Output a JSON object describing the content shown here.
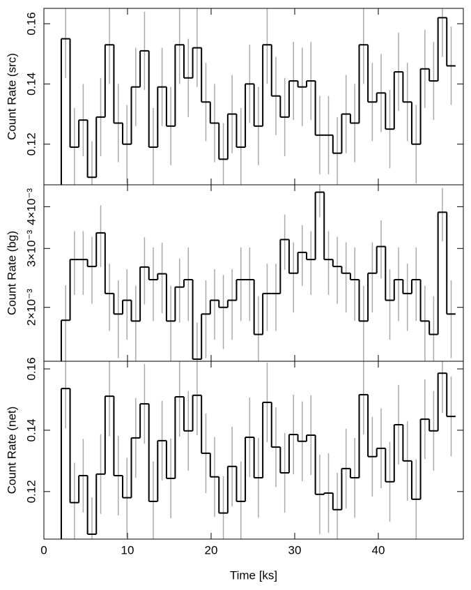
{
  "chart_data": [
    {
      "type": "histogram",
      "ylabel": "Count Rate (src)",
      "bins": [
        2.08,
        3.13,
        4.18,
        5.22,
        6.27,
        7.32,
        8.37,
        9.42,
        10.46,
        11.51,
        12.56,
        13.61,
        14.66,
        15.7,
        16.75,
        17.8,
        18.85,
        19.9,
        20.94,
        21.99,
        23.04,
        24.09,
        25.14,
        26.18,
        27.23,
        28.28,
        29.33,
        30.38,
        31.42,
        32.47,
        33.52,
        34.57,
        35.62,
        36.66,
        37.71,
        38.76,
        39.81,
        40.86,
        41.9,
        42.95,
        44.0,
        45.05,
        46.1,
        47.14,
        48.19,
        49.24
      ],
      "values": [
        0.155,
        0.119,
        0.128,
        0.109,
        0.129,
        0.153,
        0.127,
        0.12,
        0.139,
        0.151,
        0.119,
        0.139,
        0.126,
        0.153,
        0.142,
        0.152,
        0.134,
        0.127,
        0.115,
        0.13,
        0.119,
        0.14,
        0.126,
        0.153,
        0.136,
        0.129,
        0.141,
        0.139,
        0.141,
        0.123,
        0.123,
        0.117,
        0.13,
        0.127,
        0.153,
        0.134,
        0.137,
        0.125,
        0.144,
        0.134,
        0.12,
        0.145,
        0.141,
        0.162,
        0.146
      ],
      "errors": [
        0.013,
        0.013,
        0.012,
        0.012,
        0.013,
        0.013,
        0.013,
        0.013,
        0.013,
        0.013,
        0.013,
        0.013,
        0.013,
        0.013,
        0.013,
        0.013,
        0.013,
        0.013,
        0.012,
        0.013,
        0.013,
        0.013,
        0.013,
        0.013,
        0.013,
        0.013,
        0.013,
        0.013,
        0.013,
        0.013,
        0.013,
        0.012,
        0.013,
        0.013,
        0.013,
        0.013,
        0.013,
        0.013,
        0.013,
        0.013,
        0.013,
        0.013,
        0.013,
        0.013,
        0.013
      ],
      "color": "#000000",
      "error_color": "#aaaaaa",
      "xlim": [
        0,
        50.17
      ],
      "xticks": [
        0,
        10,
        20,
        30,
        40
      ],
      "ylim": [
        0.1065,
        0.1651
      ],
      "yticks": [
        0.12,
        0.14,
        0.16
      ]
    },
    {
      "type": "histogram",
      "ylabel": "Count Rate (bg)",
      "log_y": true,
      "bins": [
        2.08,
        3.13,
        4.18,
        5.22,
        6.27,
        7.32,
        8.37,
        9.42,
        10.46,
        11.51,
        12.56,
        13.61,
        14.66,
        15.7,
        16.75,
        17.8,
        18.85,
        19.9,
        20.94,
        21.99,
        23.04,
        24.09,
        25.14,
        26.18,
        27.23,
        28.28,
        29.33,
        30.38,
        31.42,
        32.47,
        33.52,
        34.57,
        35.62,
        36.66,
        37.71,
        38.76,
        39.81,
        40.86,
        41.9,
        42.95,
        44.0,
        45.05,
        46.1,
        47.14,
        48.19,
        49.24
      ],
      "values": [
        0.00183,
        0.00278,
        0.00278,
        0.00265,
        0.00334,
        0.0022,
        0.00191,
        0.0021,
        0.00182,
        0.00264,
        0.00242,
        0.00252,
        0.00182,
        0.0023,
        0.00242,
        0.0014,
        0.00191,
        0.0021,
        0.002,
        0.0021,
        0.00242,
        0.00242,
        0.00166,
        0.0022,
        0.0022,
        0.00319,
        0.00253,
        0.00292,
        0.00278,
        0.00442,
        0.00278,
        0.00265,
        0.00253,
        0.00242,
        0.00182,
        0.00253,
        0.00304,
        0.0021,
        0.00242,
        0.0022,
        0.00242,
        0.00182,
        0.00166,
        0.00385,
        0.00191
      ],
      "errors": [
        0.0005,
        0.0006,
        0.0006,
        0.0006,
        0.0007,
        0.0005,
        0.0005,
        0.0005,
        0.0005,
        0.0006,
        0.0006,
        0.0006,
        0.0005,
        0.0005,
        0.0006,
        0.0004,
        0.0005,
        0.0005,
        0.0005,
        0.0005,
        0.0006,
        0.0006,
        0.0005,
        0.0005,
        0.0005,
        0.0006,
        0.0006,
        0.0006,
        0.0006,
        0.0007,
        0.0006,
        0.0006,
        0.0006,
        0.0006,
        0.0005,
        0.0006,
        0.0006,
        0.0005,
        0.0006,
        0.0005,
        0.0006,
        0.0005,
        0.0005,
        0.0007,
        0.0005
      ],
      "color": "#000000",
      "error_color": "#aaaaaa",
      "xlim": [
        0,
        50.17
      ],
      "xticks": [
        0,
        10,
        20,
        30,
        40
      ],
      "ylim": [
        0.00138,
        0.00465
      ],
      "yticks": [
        {
          "value": 0.002,
          "label": "2×10⁻³"
        },
        {
          "value": 0.003,
          "label": "3×10⁻³"
        },
        {
          "value": 0.004,
          "label": "4×10⁻³"
        }
      ]
    },
    {
      "type": "histogram",
      "ylabel": "Count Rate (net)",
      "xlabel": "Time [ks]",
      "bins": [
        2.08,
        3.13,
        4.18,
        5.22,
        6.27,
        7.32,
        8.37,
        9.42,
        10.46,
        11.51,
        12.56,
        13.61,
        14.66,
        15.7,
        16.75,
        17.8,
        18.85,
        19.9,
        20.94,
        21.99,
        23.04,
        24.09,
        25.14,
        26.18,
        27.23,
        28.28,
        29.33,
        30.38,
        31.42,
        32.47,
        33.52,
        34.57,
        35.62,
        36.66,
        37.71,
        38.76,
        39.81,
        40.86,
        41.9,
        42.95,
        44.0,
        45.05,
        46.1,
        47.14,
        48.19,
        49.24
      ],
      "values": [
        0.1536,
        0.1164,
        0.1252,
        0.1061,
        0.1257,
        0.1511,
        0.1252,
        0.118,
        0.1375,
        0.1486,
        0.1168,
        0.1366,
        0.1243,
        0.1509,
        0.1398,
        0.1514,
        0.1325,
        0.1248,
        0.113,
        0.1282,
        0.1168,
        0.1377,
        0.1245,
        0.1491,
        0.1345,
        0.1261,
        0.1386,
        0.1364,
        0.1384,
        0.1191,
        0.1195,
        0.1141,
        0.1275,
        0.1245,
        0.1516,
        0.1314,
        0.1341,
        0.1232,
        0.1418,
        0.13,
        0.1175,
        0.1436,
        0.1398,
        0.1586,
        0.1445
      ],
      "errors": [
        0.013,
        0.013,
        0.012,
        0.012,
        0.013,
        0.013,
        0.013,
        0.013,
        0.013,
        0.013,
        0.013,
        0.013,
        0.013,
        0.013,
        0.013,
        0.013,
        0.013,
        0.013,
        0.012,
        0.013,
        0.013,
        0.013,
        0.013,
        0.013,
        0.013,
        0.013,
        0.013,
        0.013,
        0.013,
        0.013,
        0.013,
        0.012,
        0.013,
        0.013,
        0.013,
        0.013,
        0.013,
        0.013,
        0.013,
        0.013,
        0.013,
        0.013,
        0.013,
        0.013,
        0.013
      ],
      "color": "#000000",
      "error_color": "#aaaaaa",
      "xlim": [
        0,
        50.17
      ],
      "xticks": [
        0,
        10,
        20,
        30,
        40
      ],
      "ylim": [
        0.1045,
        0.1625
      ],
      "yticks": [
        0.12,
        0.14,
        0.16
      ]
    }
  ]
}
